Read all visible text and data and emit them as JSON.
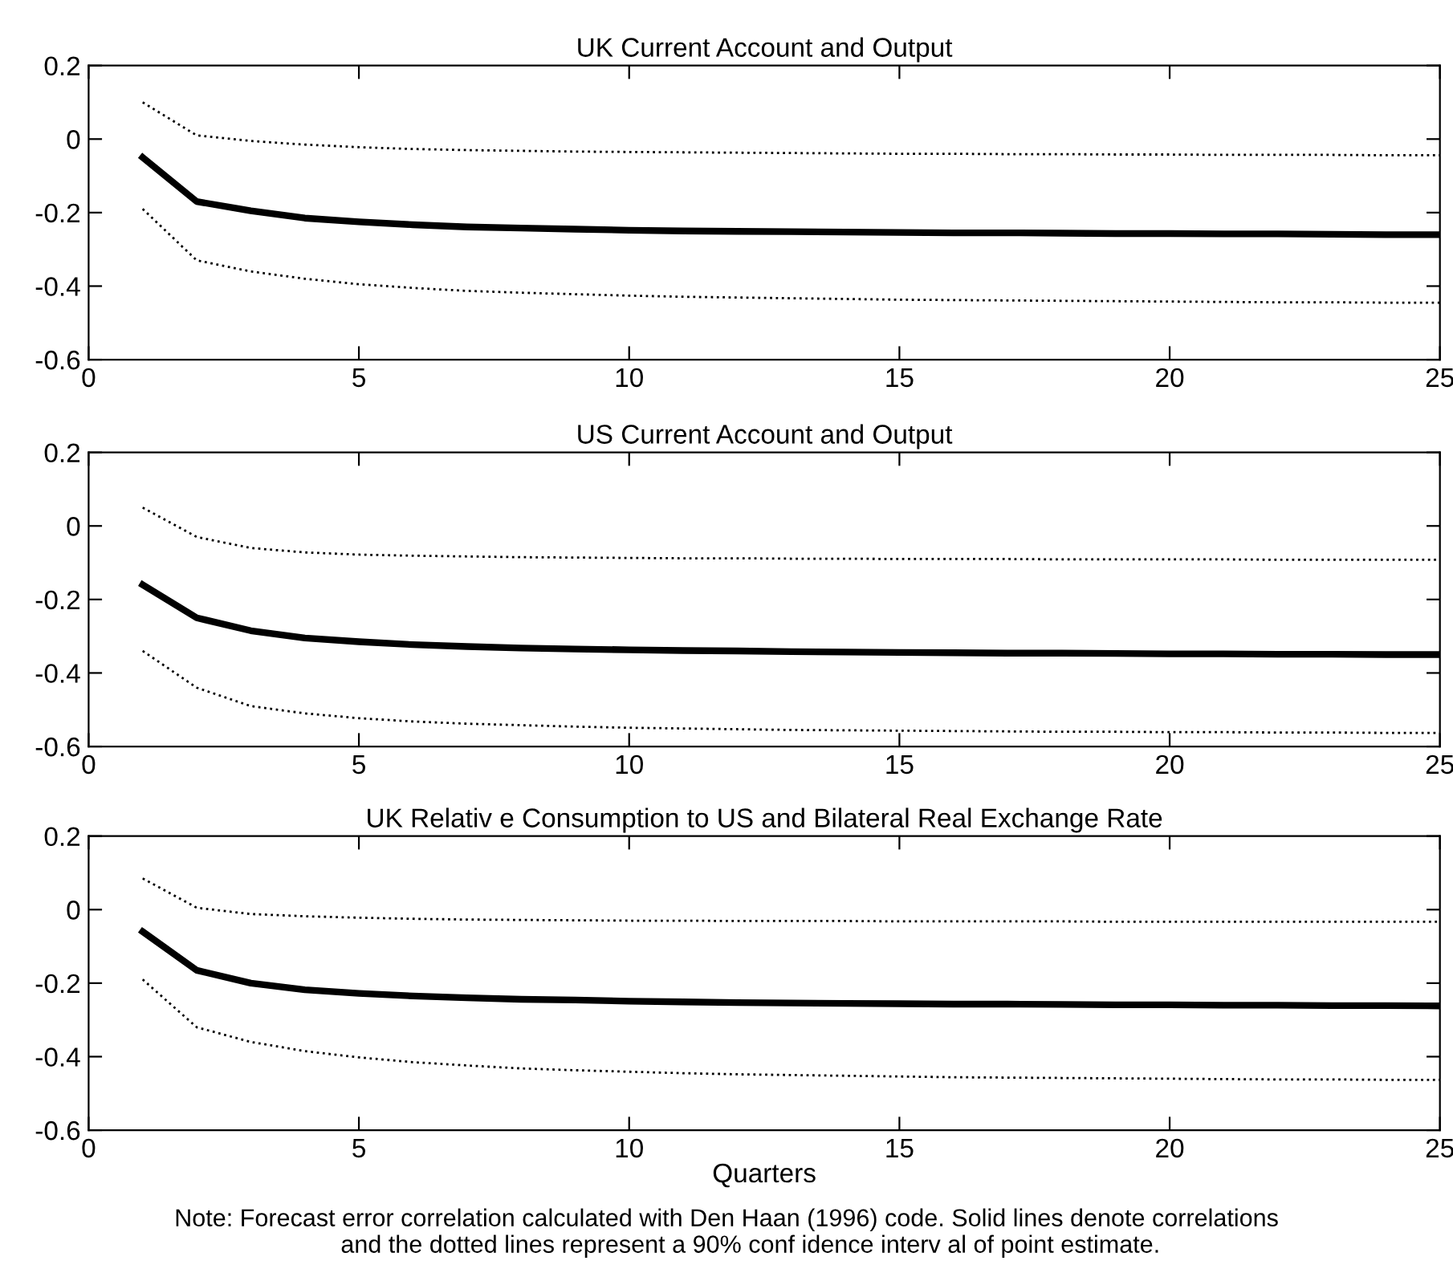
{
  "chart_data": [
    {
      "type": "line",
      "title": "UK Current Account and Output",
      "x": [
        1,
        2,
        3,
        4,
        5,
        6,
        7,
        8,
        9,
        10,
        11,
        12,
        13,
        14,
        15,
        16,
        17,
        18,
        19,
        20,
        21,
        22,
        23,
        24,
        25
      ],
      "xlim": [
        0,
        25
      ],
      "xticks": [
        0,
        5,
        10,
        15,
        20,
        25
      ],
      "ylim": [
        -0.6,
        0.2
      ],
      "yticks": [
        -0.6,
        -0.4,
        -0.2,
        0,
        0.2
      ],
      "grid": false,
      "series": [
        {
          "color": "#000000",
          "line_style": "solid",
          "values": [
            -0.05,
            -0.17,
            -0.195,
            -0.215,
            -0.225,
            -0.233,
            -0.239,
            -0.242,
            -0.245,
            -0.248,
            -0.25,
            -0.251,
            -0.252,
            -0.253,
            -0.254,
            -0.255,
            -0.255,
            -0.256,
            -0.257,
            -0.257,
            -0.258,
            -0.258,
            -0.259,
            -0.26,
            -0.26
          ]
        },
        {
          "color": "#000000",
          "line_style": "dotted",
          "values": [
            0.1,
            0.01,
            -0.005,
            -0.015,
            -0.022,
            -0.027,
            -0.03,
            -0.032,
            -0.034,
            -0.035,
            -0.036,
            -0.037,
            -0.038,
            -0.039,
            -0.04,
            -0.04,
            -0.041,
            -0.041,
            -0.042,
            -0.042,
            -0.043,
            -0.043,
            -0.043,
            -0.044,
            -0.044
          ]
        },
        {
          "color": "#000000",
          "line_style": "dotted",
          "values": [
            -0.19,
            -0.33,
            -0.36,
            -0.38,
            -0.395,
            -0.405,
            -0.413,
            -0.418,
            -0.422,
            -0.426,
            -0.429,
            -0.431,
            -0.433,
            -0.435,
            -0.437,
            -0.438,
            -0.439,
            -0.44,
            -0.441,
            -0.442,
            -0.443,
            -0.444,
            -0.444,
            -0.445,
            -0.445
          ]
        }
      ]
    },
    {
      "type": "line",
      "title": "US Current Account and Output",
      "x": [
        1,
        2,
        3,
        4,
        5,
        6,
        7,
        8,
        9,
        10,
        11,
        12,
        13,
        14,
        15,
        16,
        17,
        18,
        19,
        20,
        21,
        22,
        23,
        24,
        25
      ],
      "xlim": [
        0,
        25
      ],
      "xticks": [
        0,
        5,
        10,
        15,
        20,
        25
      ],
      "ylim": [
        -0.6,
        0.2
      ],
      "yticks": [
        -0.6,
        -0.4,
        -0.2,
        0,
        0.2
      ],
      "grid": false,
      "series": [
        {
          "color": "#000000",
          "line_style": "solid",
          "values": [
            -0.16,
            -0.25,
            -0.285,
            -0.305,
            -0.315,
            -0.323,
            -0.328,
            -0.332,
            -0.335,
            -0.337,
            -0.339,
            -0.34,
            -0.342,
            -0.343,
            -0.344,
            -0.345,
            -0.346,
            -0.346,
            -0.347,
            -0.348,
            -0.348,
            -0.349,
            -0.349,
            -0.35,
            -0.35
          ]
        },
        {
          "color": "#000000",
          "line_style": "dotted",
          "values": [
            0.05,
            -0.03,
            -0.06,
            -0.072,
            -0.078,
            -0.081,
            -0.083,
            -0.085,
            -0.086,
            -0.087,
            -0.088,
            -0.088,
            -0.089,
            -0.089,
            -0.09,
            -0.09,
            -0.09,
            -0.091,
            -0.091,
            -0.091,
            -0.091,
            -0.092,
            -0.092,
            -0.092,
            -0.092
          ]
        },
        {
          "color": "#000000",
          "line_style": "dotted",
          "values": [
            -0.34,
            -0.44,
            -0.49,
            -0.51,
            -0.523,
            -0.532,
            -0.538,
            -0.542,
            -0.546,
            -0.549,
            -0.551,
            -0.553,
            -0.555,
            -0.556,
            -0.557,
            -0.558,
            -0.559,
            -0.56,
            -0.56,
            -0.561,
            -0.561,
            -0.562,
            -0.562,
            -0.563,
            -0.563
          ]
        }
      ]
    },
    {
      "type": "line",
      "title": "UK Relativ e Consumption to US and Bilateral Real Exchange Rate",
      "xlabel": "Quarters",
      "x": [
        1,
        2,
        3,
        4,
        5,
        6,
        7,
        8,
        9,
        10,
        11,
        12,
        13,
        14,
        15,
        16,
        17,
        18,
        19,
        20,
        21,
        22,
        23,
        24,
        25
      ],
      "xlim": [
        0,
        25
      ],
      "xticks": [
        0,
        5,
        10,
        15,
        20,
        25
      ],
      "ylim": [
        -0.6,
        0.2
      ],
      "yticks": [
        -0.6,
        -0.4,
        -0.2,
        0,
        0.2
      ],
      "grid": false,
      "annotations": [
        "Note: Forecast error correlation calculated with Den Haan (1996) code. Solid lines denote correlations\n       and the dotted lines represent a 90% conf idence interv al of point estimate."
      ],
      "series": [
        {
          "color": "#000000",
          "line_style": "solid",
          "values": [
            -0.06,
            -0.165,
            -0.2,
            -0.218,
            -0.228,
            -0.235,
            -0.24,
            -0.244,
            -0.246,
            -0.249,
            -0.251,
            -0.253,
            -0.254,
            -0.255,
            -0.256,
            -0.257,
            -0.257,
            -0.258,
            -0.259,
            -0.259,
            -0.26,
            -0.26,
            -0.261,
            -0.261,
            -0.262
          ]
        },
        {
          "color": "#000000",
          "line_style": "dotted",
          "values": [
            0.085,
            0.005,
            -0.012,
            -0.018,
            -0.022,
            -0.025,
            -0.027,
            -0.028,
            -0.029,
            -0.03,
            -0.03,
            -0.031,
            -0.031,
            -0.031,
            -0.032,
            -0.032,
            -0.032,
            -0.032,
            -0.033,
            -0.033,
            -0.033,
            -0.033,
            -0.033,
            -0.033,
            -0.033
          ]
        },
        {
          "color": "#000000",
          "line_style": "dotted",
          "values": [
            -0.19,
            -0.32,
            -0.36,
            -0.385,
            -0.402,
            -0.415,
            -0.424,
            -0.432,
            -0.437,
            -0.441,
            -0.445,
            -0.448,
            -0.45,
            -0.452,
            -0.454,
            -0.456,
            -0.457,
            -0.458,
            -0.459,
            -0.46,
            -0.461,
            -0.462,
            -0.462,
            -0.463,
            -0.463
          ]
        }
      ]
    }
  ]
}
